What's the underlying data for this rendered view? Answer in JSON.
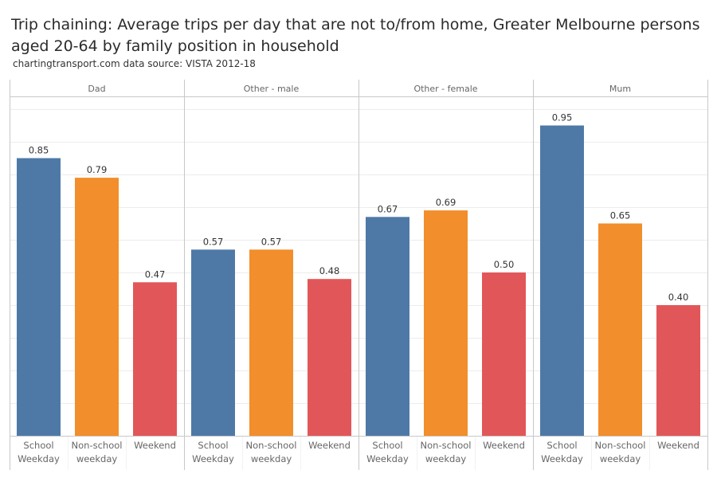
{
  "title": "Trip chaining: Average trips per day that are not to/from home, Greater Melbourne persons aged 20-64 by family position in household",
  "subtitle": "chartingtransport.com  data source: VISTA 2012-18",
  "colors": {
    "School Weekday": "#4e79a7",
    "Non-school weekday": "#f28e2b",
    "Weekend": "#e15759",
    "grid": "#ececec",
    "border": "#c8c8c8",
    "label": "#666666",
    "value": "#333333"
  },
  "chart_data": {
    "type": "bar",
    "title": "Trip chaining: Average trips per day that are not to/from home, Greater Melbourne persons aged 20-64 by family position in household",
    "xlabel": "",
    "ylabel": "",
    "ylim": [
      0,
      1.0
    ],
    "grid": true,
    "panels": [
      "Dad",
      "Other - male",
      "Other - female",
      "Mum"
    ],
    "categories": [
      "School Weekday",
      "Non-school weekday",
      "Weekend"
    ],
    "category_lines": [
      [
        "School",
        "Weekday"
      ],
      [
        "Non-school",
        "weekday"
      ],
      [
        "Weekend"
      ]
    ],
    "values": [
      [
        0.85,
        0.79,
        0.47
      ],
      [
        0.57,
        0.57,
        0.48
      ],
      [
        0.67,
        0.69,
        0.5
      ],
      [
        0.95,
        0.65,
        0.4
      ]
    ],
    "labels": [
      [
        "0.85",
        "0.79",
        "0.47"
      ],
      [
        "0.57",
        "0.57",
        "0.48"
      ],
      [
        "0.67",
        "0.69",
        "0.50"
      ],
      [
        "0.95",
        "0.65",
        "0.40"
      ]
    ]
  }
}
